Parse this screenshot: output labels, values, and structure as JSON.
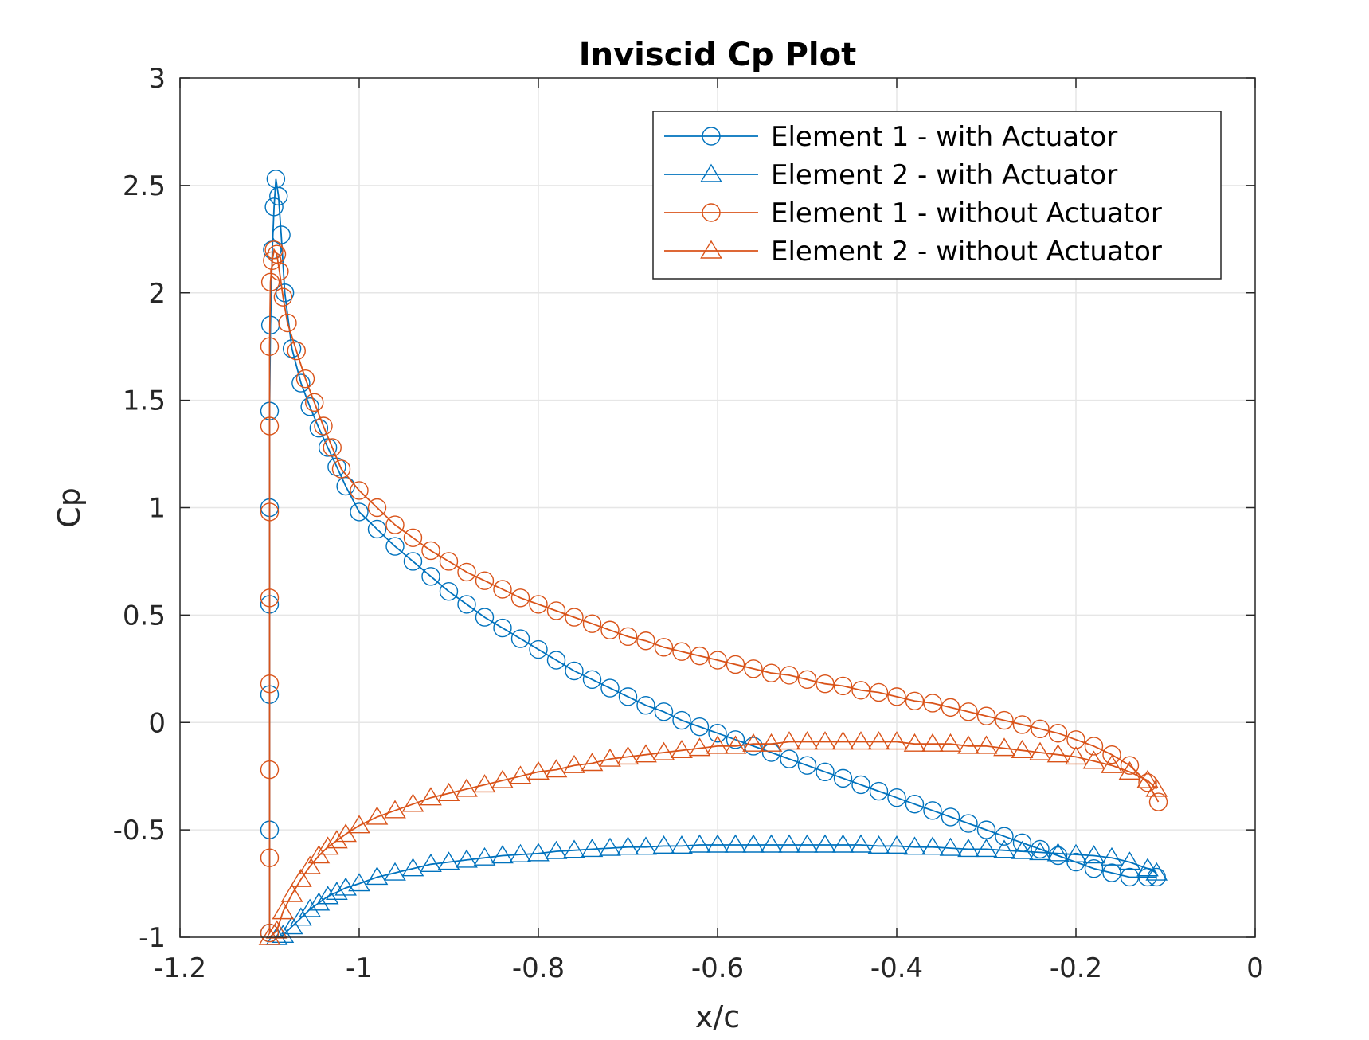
{
  "chart_data": {
    "type": "line",
    "title": "Inviscid Cp Plot",
    "xlabel": "x/c",
    "ylabel": "Cp",
    "xlim": [
      -1.2,
      0
    ],
    "ylim": [
      -1,
      3
    ],
    "xticks": [
      -1.2,
      -1,
      -0.8,
      -0.6,
      -0.4,
      -0.2,
      0
    ],
    "yticks": [
      -1,
      -0.5,
      0,
      0.5,
      1,
      1.5,
      2,
      2.5,
      3
    ],
    "xtick_labels": [
      "-1.2",
      "-1",
      "-0.8",
      "-0.6",
      "-0.4",
      "-0.2",
      "0"
    ],
    "ytick_labels": [
      "-1",
      "-0.5",
      "0",
      "0.5",
      "1",
      "1.5",
      "2",
      "2.5",
      "3"
    ],
    "grid": true,
    "legend_position": "top-right",
    "series": [
      {
        "name": "Element 1 - with Actuator",
        "marker": "circle",
        "color": "#0072BD",
        "x": [
          -1.1,
          -1.1,
          -1.1,
          -1.1,
          -1.1,
          -1.1,
          -1.099,
          -1.097,
          -1.095,
          -1.093,
          -1.09,
          -1.087,
          -1.083,
          -1.075,
          -1.065,
          -1.055,
          -1.045,
          -1.035,
          -1.025,
          -1.015,
          -1.0,
          -0.98,
          -0.96,
          -0.94,
          -0.92,
          -0.9,
          -0.88,
          -0.86,
          -0.84,
          -0.82,
          -0.8,
          -0.78,
          -0.76,
          -0.74,
          -0.72,
          -0.7,
          -0.68,
          -0.66,
          -0.64,
          -0.62,
          -0.6,
          -0.58,
          -0.56,
          -0.54,
          -0.52,
          -0.5,
          -0.48,
          -0.46,
          -0.44,
          -0.42,
          -0.4,
          -0.38,
          -0.36,
          -0.34,
          -0.32,
          -0.3,
          -0.28,
          -0.26,
          -0.24,
          -0.22,
          -0.2,
          -0.18,
          -0.16,
          -0.14,
          -0.12,
          -0.11
        ],
        "y": [
          -0.98,
          -0.5,
          0.13,
          0.55,
          1.0,
          1.45,
          1.85,
          2.2,
          2.4,
          2.53,
          2.45,
          2.27,
          2.0,
          1.74,
          1.58,
          1.47,
          1.37,
          1.28,
          1.19,
          1.1,
          0.98,
          0.9,
          0.82,
          0.75,
          0.68,
          0.61,
          0.55,
          0.49,
          0.44,
          0.39,
          0.34,
          0.29,
          0.24,
          0.2,
          0.16,
          0.12,
          0.08,
          0.05,
          0.01,
          -0.02,
          -0.05,
          -0.08,
          -0.11,
          -0.14,
          -0.17,
          -0.2,
          -0.23,
          -0.26,
          -0.29,
          -0.32,
          -0.35,
          -0.38,
          -0.41,
          -0.44,
          -0.47,
          -0.5,
          -0.53,
          -0.56,
          -0.59,
          -0.62,
          -0.65,
          -0.68,
          -0.7,
          -0.72,
          -0.72,
          -0.72
        ]
      },
      {
        "name": "Element 2 - with Actuator",
        "marker": "triangle",
        "color": "#0072BD",
        "x": [
          -1.092,
          -1.085,
          -1.075,
          -1.065,
          -1.055,
          -1.045,
          -1.035,
          -1.025,
          -1.015,
          -1.0,
          -0.98,
          -0.96,
          -0.94,
          -0.92,
          -0.9,
          -0.88,
          -0.86,
          -0.84,
          -0.82,
          -0.8,
          -0.78,
          -0.76,
          -0.74,
          -0.72,
          -0.7,
          -0.68,
          -0.66,
          -0.64,
          -0.62,
          -0.6,
          -0.58,
          -0.56,
          -0.54,
          -0.52,
          -0.5,
          -0.48,
          -0.46,
          -0.44,
          -0.42,
          -0.4,
          -0.38,
          -0.36,
          -0.34,
          -0.32,
          -0.3,
          -0.28,
          -0.26,
          -0.24,
          -0.22,
          -0.2,
          -0.18,
          -0.16,
          -0.14,
          -0.12,
          -0.11
        ],
        "y": [
          -1.0,
          -0.99,
          -0.95,
          -0.91,
          -0.87,
          -0.84,
          -0.81,
          -0.79,
          -0.77,
          -0.75,
          -0.72,
          -0.7,
          -0.68,
          -0.66,
          -0.65,
          -0.64,
          -0.63,
          -0.62,
          -0.615,
          -0.61,
          -0.6,
          -0.595,
          -0.59,
          -0.585,
          -0.58,
          -0.58,
          -0.575,
          -0.575,
          -0.57,
          -0.57,
          -0.57,
          -0.57,
          -0.57,
          -0.57,
          -0.57,
          -0.57,
          -0.57,
          -0.57,
          -0.575,
          -0.575,
          -0.58,
          -0.58,
          -0.585,
          -0.59,
          -0.59,
          -0.595,
          -0.6,
          -0.605,
          -0.61,
          -0.615,
          -0.62,
          -0.63,
          -0.65,
          -0.68,
          -0.7
        ]
      },
      {
        "name": "Element 1 - without Actuator",
        "marker": "circle",
        "color": "#D95319",
        "x": [
          -1.1,
          -1.1,
          -1.1,
          -1.1,
          -1.1,
          -1.1,
          -1.1,
          -1.1,
          -1.099,
          -1.097,
          -1.095,
          -1.092,
          -1.089,
          -1.085,
          -1.08,
          -1.07,
          -1.06,
          -1.05,
          -1.04,
          -1.03,
          -1.02,
          -1.0,
          -0.98,
          -0.96,
          -0.94,
          -0.92,
          -0.9,
          -0.88,
          -0.86,
          -0.84,
          -0.82,
          -0.8,
          -0.78,
          -0.76,
          -0.74,
          -0.72,
          -0.7,
          -0.68,
          -0.66,
          -0.64,
          -0.62,
          -0.6,
          -0.58,
          -0.56,
          -0.54,
          -0.52,
          -0.5,
          -0.48,
          -0.46,
          -0.44,
          -0.42,
          -0.4,
          -0.38,
          -0.36,
          -0.34,
          -0.32,
          -0.3,
          -0.28,
          -0.26,
          -0.24,
          -0.22,
          -0.2,
          -0.18,
          -0.16,
          -0.14,
          -0.12,
          -0.108
        ],
        "y": [
          -0.98,
          -0.63,
          -0.22,
          0.18,
          0.58,
          0.98,
          1.38,
          1.75,
          2.05,
          2.15,
          2.2,
          2.18,
          2.1,
          1.98,
          1.86,
          1.73,
          1.6,
          1.49,
          1.38,
          1.28,
          1.18,
          1.08,
          1.0,
          0.92,
          0.86,
          0.8,
          0.75,
          0.7,
          0.66,
          0.62,
          0.58,
          0.55,
          0.52,
          0.49,
          0.46,
          0.43,
          0.4,
          0.38,
          0.35,
          0.33,
          0.31,
          0.29,
          0.27,
          0.25,
          0.23,
          0.22,
          0.2,
          0.18,
          0.17,
          0.15,
          0.14,
          0.12,
          0.1,
          0.09,
          0.07,
          0.05,
          0.03,
          0.01,
          -0.01,
          -0.03,
          -0.05,
          -0.08,
          -0.11,
          -0.15,
          -0.2,
          -0.28,
          -0.37
        ]
      },
      {
        "name": "Element 2 - without Actuator",
        "marker": "triangle",
        "color": "#D95319",
        "x": [
          -1.1,
          -1.092,
          -1.085,
          -1.075,
          -1.065,
          -1.055,
          -1.045,
          -1.035,
          -1.025,
          -1.015,
          -1.0,
          -0.98,
          -0.96,
          -0.94,
          -0.92,
          -0.9,
          -0.88,
          -0.86,
          -0.84,
          -0.82,
          -0.8,
          -0.78,
          -0.76,
          -0.74,
          -0.72,
          -0.7,
          -0.68,
          -0.66,
          -0.64,
          -0.62,
          -0.6,
          -0.58,
          -0.56,
          -0.54,
          -0.52,
          -0.5,
          -0.48,
          -0.46,
          -0.44,
          -0.42,
          -0.4,
          -0.38,
          -0.36,
          -0.34,
          -0.32,
          -0.3,
          -0.28,
          -0.26,
          -0.24,
          -0.22,
          -0.2,
          -0.18,
          -0.16,
          -0.14,
          -0.12,
          -0.11
        ],
        "y": [
          -1.0,
          -0.97,
          -0.88,
          -0.8,
          -0.73,
          -0.67,
          -0.62,
          -0.58,
          -0.55,
          -0.52,
          -0.48,
          -0.44,
          -0.41,
          -0.38,
          -0.35,
          -0.33,
          -0.31,
          -0.29,
          -0.27,
          -0.25,
          -0.23,
          -0.22,
          -0.2,
          -0.19,
          -0.17,
          -0.16,
          -0.15,
          -0.14,
          -0.13,
          -0.12,
          -0.11,
          -0.11,
          -0.1,
          -0.1,
          -0.09,
          -0.09,
          -0.09,
          -0.09,
          -0.09,
          -0.09,
          -0.09,
          -0.1,
          -0.1,
          -0.1,
          -0.11,
          -0.11,
          -0.12,
          -0.13,
          -0.14,
          -0.15,
          -0.16,
          -0.18,
          -0.2,
          -0.23,
          -0.27,
          -0.31
        ]
      }
    ]
  }
}
